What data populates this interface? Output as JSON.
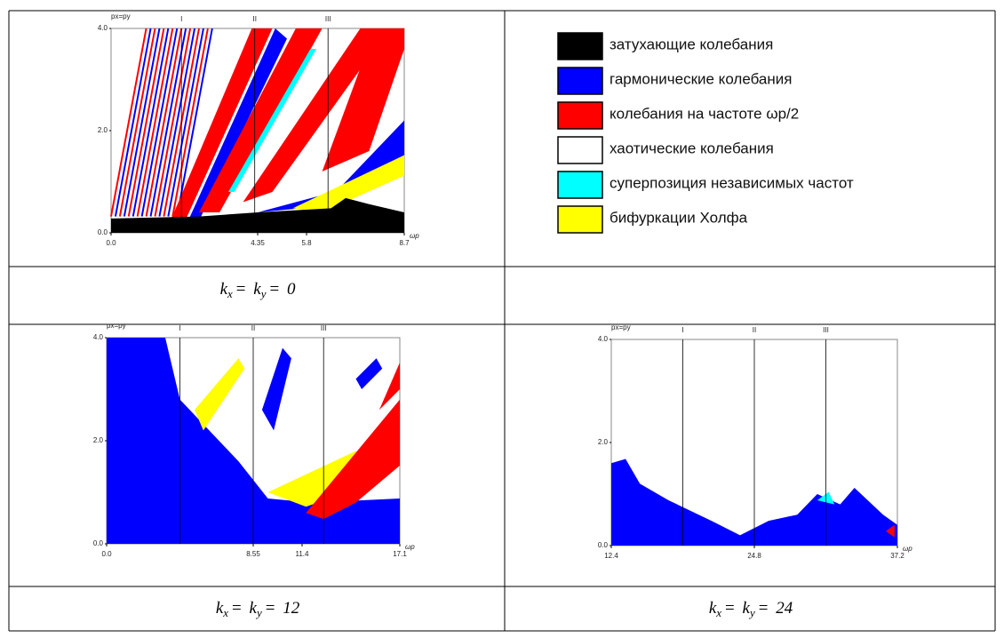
{
  "panels": [
    {
      "axis_label": "px=py",
      "x_axis_label": "ωp",
      "regions": [
        "I",
        "II",
        "III"
      ],
      "xlim": [
        0,
        8.7
      ],
      "xticks": [
        {
          "value": 0,
          "label": "0.0"
        },
        4.35,
        5.8,
        8.7
      ],
      "ylim": [
        0,
        4
      ],
      "yticks": [
        {
          "value": 0,
          "label": "0.0"
        },
        {
          "value": 2,
          "label": "2.0"
        },
        {
          "value": 4,
          "label": "4.0"
        }
      ],
      "caption": [
        "k",
        "x",
        "=",
        "k",
        "y",
        "=",
        "0"
      ]
    },
    {
      "axis_label": "px=py",
      "x_axis_label": "ωp",
      "regions": [
        "I",
        "II",
        "III"
      ],
      "xlim": [
        0,
        17.1
      ],
      "xticks": [
        {
          "value": 0,
          "label": "0.0"
        },
        8.55,
        11.4,
        17.1
      ],
      "ylim": [
        0,
        4
      ],
      "yticks": [
        {
          "value": 0,
          "label": "0.0"
        },
        {
          "value": 2,
          "label": "2.0"
        },
        {
          "value": 4,
          "label": "4.0"
        }
      ],
      "caption": [
        "k",
        "x",
        "=",
        "k",
        "y",
        "=",
        "12"
      ]
    },
    {
      "axis_label": "px=py",
      "x_axis_label": "ωp",
      "regions": [
        "I",
        "II",
        "III"
      ],
      "xlim": [
        12.4,
        37.2
      ],
      "xticks": [
        12.4,
        24.8,
        37.2
      ],
      "ylim": [
        0,
        4
      ],
      "yticks": [
        {
          "value": 0,
          "label": "0.0"
        },
        {
          "value": 2,
          "label": "2.0"
        },
        {
          "value": 4,
          "label": "4.0"
        }
      ],
      "caption": [
        "k",
        "x",
        "=",
        "k",
        "y",
        "=",
        "24"
      ]
    }
  ],
  "legend": [
    {
      "label": "затухающие колебания",
      "color": "#000000"
    },
    {
      "label": "гармонические колебания",
      "color": "#0000ff"
    },
    {
      "label": "колебания на частоте ωp/2",
      "color": "#ff0000"
    },
    {
      "label": "хаотические колебания",
      "color": "#ffffff"
    },
    {
      "label": "суперпозиция независимых частот",
      "color": "#00ffff"
    },
    {
      "label": "бифуркации Холфа",
      "color": "#ffff00"
    }
  ]
}
